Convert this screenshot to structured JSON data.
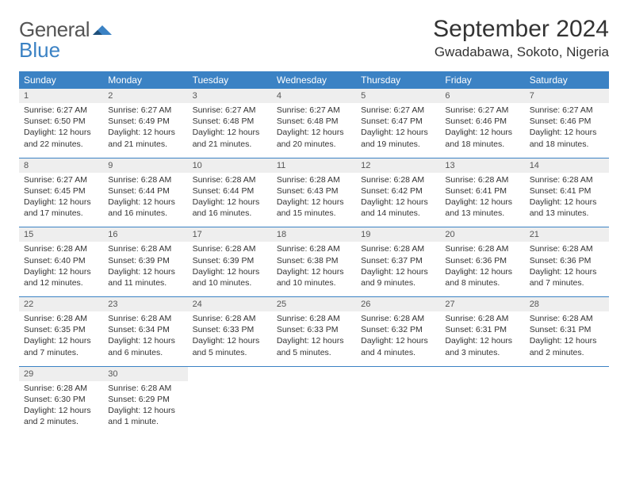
{
  "brand": {
    "part1": "General",
    "part2": "Blue"
  },
  "title": "September 2024",
  "location": "Gwadabawa, Sokoto, Nigeria",
  "colors": {
    "header_bg": "#3b82c4",
    "header_text": "#ffffff",
    "daynum_bg": "#eeeeee",
    "rule": "#3b82c4",
    "body_text": "#333333"
  },
  "weekdays": [
    "Sunday",
    "Monday",
    "Tuesday",
    "Wednesday",
    "Thursday",
    "Friday",
    "Saturday"
  ],
  "weeks": [
    [
      {
        "n": "1",
        "sr": "Sunrise: 6:27 AM",
        "ss": "Sunset: 6:50 PM",
        "d1": "Daylight: 12 hours",
        "d2": "and 22 minutes."
      },
      {
        "n": "2",
        "sr": "Sunrise: 6:27 AM",
        "ss": "Sunset: 6:49 PM",
        "d1": "Daylight: 12 hours",
        "d2": "and 21 minutes."
      },
      {
        "n": "3",
        "sr": "Sunrise: 6:27 AM",
        "ss": "Sunset: 6:48 PM",
        "d1": "Daylight: 12 hours",
        "d2": "and 21 minutes."
      },
      {
        "n": "4",
        "sr": "Sunrise: 6:27 AM",
        "ss": "Sunset: 6:48 PM",
        "d1": "Daylight: 12 hours",
        "d2": "and 20 minutes."
      },
      {
        "n": "5",
        "sr": "Sunrise: 6:27 AM",
        "ss": "Sunset: 6:47 PM",
        "d1": "Daylight: 12 hours",
        "d2": "and 19 minutes."
      },
      {
        "n": "6",
        "sr": "Sunrise: 6:27 AM",
        "ss": "Sunset: 6:46 PM",
        "d1": "Daylight: 12 hours",
        "d2": "and 18 minutes."
      },
      {
        "n": "7",
        "sr": "Sunrise: 6:27 AM",
        "ss": "Sunset: 6:46 PM",
        "d1": "Daylight: 12 hours",
        "d2": "and 18 minutes."
      }
    ],
    [
      {
        "n": "8",
        "sr": "Sunrise: 6:27 AM",
        "ss": "Sunset: 6:45 PM",
        "d1": "Daylight: 12 hours",
        "d2": "and 17 minutes."
      },
      {
        "n": "9",
        "sr": "Sunrise: 6:28 AM",
        "ss": "Sunset: 6:44 PM",
        "d1": "Daylight: 12 hours",
        "d2": "and 16 minutes."
      },
      {
        "n": "10",
        "sr": "Sunrise: 6:28 AM",
        "ss": "Sunset: 6:44 PM",
        "d1": "Daylight: 12 hours",
        "d2": "and 16 minutes."
      },
      {
        "n": "11",
        "sr": "Sunrise: 6:28 AM",
        "ss": "Sunset: 6:43 PM",
        "d1": "Daylight: 12 hours",
        "d2": "and 15 minutes."
      },
      {
        "n": "12",
        "sr": "Sunrise: 6:28 AM",
        "ss": "Sunset: 6:42 PM",
        "d1": "Daylight: 12 hours",
        "d2": "and 14 minutes."
      },
      {
        "n": "13",
        "sr": "Sunrise: 6:28 AM",
        "ss": "Sunset: 6:41 PM",
        "d1": "Daylight: 12 hours",
        "d2": "and 13 minutes."
      },
      {
        "n": "14",
        "sr": "Sunrise: 6:28 AM",
        "ss": "Sunset: 6:41 PM",
        "d1": "Daylight: 12 hours",
        "d2": "and 13 minutes."
      }
    ],
    [
      {
        "n": "15",
        "sr": "Sunrise: 6:28 AM",
        "ss": "Sunset: 6:40 PM",
        "d1": "Daylight: 12 hours",
        "d2": "and 12 minutes."
      },
      {
        "n": "16",
        "sr": "Sunrise: 6:28 AM",
        "ss": "Sunset: 6:39 PM",
        "d1": "Daylight: 12 hours",
        "d2": "and 11 minutes."
      },
      {
        "n": "17",
        "sr": "Sunrise: 6:28 AM",
        "ss": "Sunset: 6:39 PM",
        "d1": "Daylight: 12 hours",
        "d2": "and 10 minutes."
      },
      {
        "n": "18",
        "sr": "Sunrise: 6:28 AM",
        "ss": "Sunset: 6:38 PM",
        "d1": "Daylight: 12 hours",
        "d2": "and 10 minutes."
      },
      {
        "n": "19",
        "sr": "Sunrise: 6:28 AM",
        "ss": "Sunset: 6:37 PM",
        "d1": "Daylight: 12 hours",
        "d2": "and 9 minutes."
      },
      {
        "n": "20",
        "sr": "Sunrise: 6:28 AM",
        "ss": "Sunset: 6:36 PM",
        "d1": "Daylight: 12 hours",
        "d2": "and 8 minutes."
      },
      {
        "n": "21",
        "sr": "Sunrise: 6:28 AM",
        "ss": "Sunset: 6:36 PM",
        "d1": "Daylight: 12 hours",
        "d2": "and 7 minutes."
      }
    ],
    [
      {
        "n": "22",
        "sr": "Sunrise: 6:28 AM",
        "ss": "Sunset: 6:35 PM",
        "d1": "Daylight: 12 hours",
        "d2": "and 7 minutes."
      },
      {
        "n": "23",
        "sr": "Sunrise: 6:28 AM",
        "ss": "Sunset: 6:34 PM",
        "d1": "Daylight: 12 hours",
        "d2": "and 6 minutes."
      },
      {
        "n": "24",
        "sr": "Sunrise: 6:28 AM",
        "ss": "Sunset: 6:33 PM",
        "d1": "Daylight: 12 hours",
        "d2": "and 5 minutes."
      },
      {
        "n": "25",
        "sr": "Sunrise: 6:28 AM",
        "ss": "Sunset: 6:33 PM",
        "d1": "Daylight: 12 hours",
        "d2": "and 5 minutes."
      },
      {
        "n": "26",
        "sr": "Sunrise: 6:28 AM",
        "ss": "Sunset: 6:32 PM",
        "d1": "Daylight: 12 hours",
        "d2": "and 4 minutes."
      },
      {
        "n": "27",
        "sr": "Sunrise: 6:28 AM",
        "ss": "Sunset: 6:31 PM",
        "d1": "Daylight: 12 hours",
        "d2": "and 3 minutes."
      },
      {
        "n": "28",
        "sr": "Sunrise: 6:28 AM",
        "ss": "Sunset: 6:31 PM",
        "d1": "Daylight: 12 hours",
        "d2": "and 2 minutes."
      }
    ],
    [
      {
        "n": "29",
        "sr": "Sunrise: 6:28 AM",
        "ss": "Sunset: 6:30 PM",
        "d1": "Daylight: 12 hours",
        "d2": "and 2 minutes."
      },
      {
        "n": "30",
        "sr": "Sunrise: 6:28 AM",
        "ss": "Sunset: 6:29 PM",
        "d1": "Daylight: 12 hours",
        "d2": "and 1 minute."
      },
      null,
      null,
      null,
      null,
      null
    ]
  ]
}
